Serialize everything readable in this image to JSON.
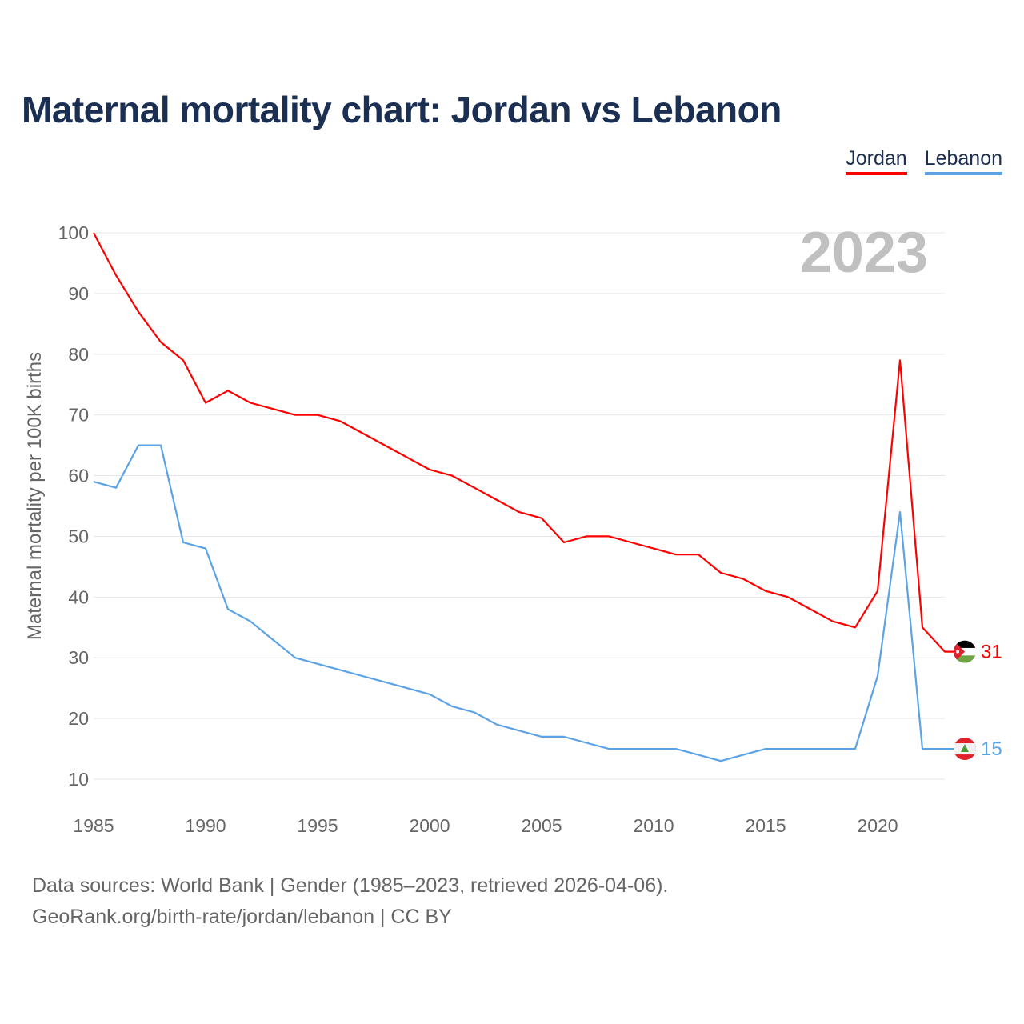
{
  "title": "Maternal mortality chart: Jordan vs Lebanon",
  "footer": {
    "line1": "Data sources: World Bank | Gender (1985–2023, retrieved 2026-04-06).",
    "line2": "GeoRank.org/birth-rate/jordan/lebanon | CC BY"
  },
  "chart_data": {
    "type": "line",
    "title": "Maternal mortality chart: Jordan vs Lebanon",
    "ylabel": "Maternal mortality per 100K births",
    "xlabel": "",
    "year_label": "2023",
    "xlim": [
      1985,
      2023
    ],
    "ylim": [
      10,
      100
    ],
    "x_ticks": [
      1985,
      1990,
      1995,
      2000,
      2005,
      2010,
      2015,
      2020
    ],
    "y_ticks": [
      10,
      20,
      30,
      40,
      50,
      60,
      70,
      80,
      90,
      100
    ],
    "grid": true,
    "legend_position": "top-right",
    "x": [
      1985,
      1986,
      1987,
      1988,
      1989,
      1990,
      1991,
      1992,
      1993,
      1994,
      1995,
      1996,
      1997,
      1998,
      1999,
      2000,
      2001,
      2002,
      2003,
      2004,
      2005,
      2006,
      2007,
      2008,
      2009,
      2010,
      2011,
      2012,
      2013,
      2014,
      2015,
      2016,
      2017,
      2018,
      2019,
      2020,
      2021,
      2022,
      2023
    ],
    "series": [
      {
        "name": "Jordan",
        "color": "#ff0000",
        "end_label": "31",
        "values": [
          100,
          93,
          87,
          82,
          79,
          72,
          74,
          72,
          71,
          70,
          70,
          69,
          67,
          65,
          63,
          61,
          60,
          58,
          56,
          54,
          53,
          49,
          50,
          50,
          49,
          48,
          47,
          47,
          44,
          43,
          41,
          40,
          38,
          36,
          35,
          41,
          79,
          35,
          31
        ]
      },
      {
        "name": "Lebanon",
        "color": "#5ba3e6",
        "end_label": "15",
        "values": [
          59,
          58,
          65,
          65,
          49,
          48,
          38,
          36,
          33,
          30,
          29,
          28,
          27,
          26,
          25,
          24,
          22,
          21,
          19,
          18,
          17,
          17,
          16,
          15,
          15,
          15,
          15,
          14,
          13,
          14,
          15,
          15,
          15,
          15,
          15,
          27,
          54,
          15,
          15
        ]
      }
    ]
  }
}
